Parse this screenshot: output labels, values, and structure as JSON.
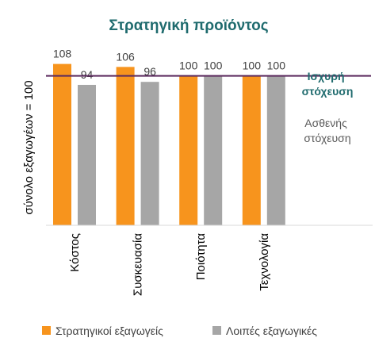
{
  "chart_data": {
    "type": "bar",
    "title": "Στρατηγική προϊόντος",
    "xlabel": "",
    "ylabel": "σύνολο εξαγωγέων = 100",
    "ylim": [
      0,
      120
    ],
    "categories": [
      "Κόστος",
      "Συσκευασία",
      "Ποιότητα",
      "Τεχνολογία"
    ],
    "series": [
      {
        "name": "Στρατηγικοί εξαγωγείς",
        "values": [
          108,
          106,
          100,
          100
        ],
        "color": "#f7941d"
      },
      {
        "name": "Λοιπές εξαγωγικές",
        "values": [
          94,
          96,
          100,
          100
        ],
        "color": "#a6a6a6"
      }
    ],
    "reference_line": {
      "value": 100,
      "color": "#5b2a5e"
    },
    "annotations": {
      "strong": [
        "Ισχυρή",
        "στόχευση"
      ],
      "weak": [
        "Ασθενής",
        "στόχευση"
      ]
    },
    "grid": false,
    "legend": "bottom",
    "colors": {
      "title": "#1f6b6e",
      "strong": "#1f6b6e",
      "weak": "#595959",
      "axis": "#d9d9d9",
      "text": "#404040"
    }
  }
}
